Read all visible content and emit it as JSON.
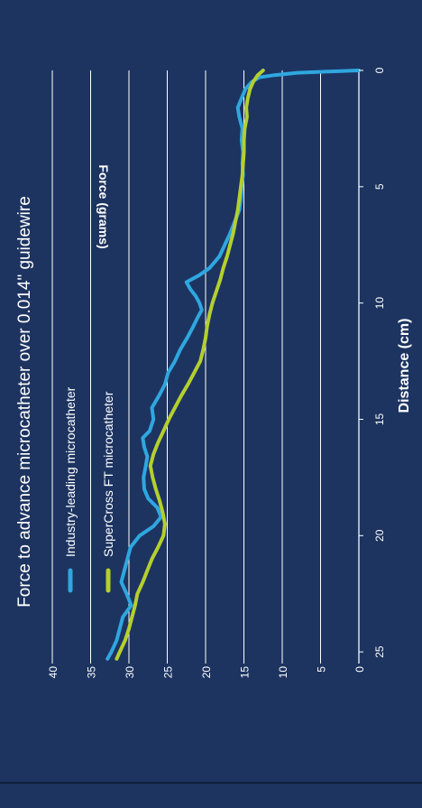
{
  "chart_data": {
    "type": "line",
    "orientation": "rotated-90-ccw",
    "title": "Force to advance microcatheter over 0.014\" guidewire",
    "xlabel": "Distance (cm)",
    "ylabel": "Force (grams)",
    "xlim": [
      0,
      25.5
    ],
    "ylim": [
      0,
      40
    ],
    "xticks": [
      0,
      5,
      10,
      15,
      20,
      25
    ],
    "yticks": [
      0,
      5,
      10,
      15,
      20,
      25,
      30,
      35,
      40
    ],
    "grid": "horizontal-lines",
    "legend_position": "top-left",
    "series": [
      {
        "name": "Industry-leading microcatheter",
        "color": "#2fa7df",
        "points": [
          [
            0,
            0
          ],
          [
            0.05,
            4
          ],
          [
            0.1,
            8
          ],
          [
            0.2,
            11
          ],
          [
            0.3,
            13
          ],
          [
            0.5,
            14
          ],
          [
            0.8,
            14.8
          ],
          [
            1.2,
            15.3
          ],
          [
            1.6,
            15.8
          ],
          [
            2.0,
            15.6
          ],
          [
            2.5,
            15.2
          ],
          [
            3.0,
            15.3
          ],
          [
            3.5,
            15.1
          ],
          [
            4.0,
            15.2
          ],
          [
            4.5,
            15.1
          ],
          [
            5.0,
            15.3
          ],
          [
            5.5,
            15.4
          ],
          [
            6.0,
            15.6
          ],
          [
            6.5,
            16.2
          ],
          [
            7.0,
            16.8
          ],
          [
            7.5,
            17.5
          ],
          [
            8.0,
            18.2
          ],
          [
            8.5,
            19.5
          ],
          [
            8.8,
            20.8
          ],
          [
            9.1,
            22.5
          ],
          [
            9.4,
            22.0
          ],
          [
            9.7,
            21.3
          ],
          [
            10.0,
            20.8
          ],
          [
            10.3,
            20.5
          ],
          [
            10.6,
            21.0
          ],
          [
            11.0,
            21.6
          ],
          [
            11.5,
            22.4
          ],
          [
            12.0,
            23.3
          ],
          [
            12.5,
            24.0
          ],
          [
            13.0,
            24.9
          ],
          [
            13.5,
            25.3
          ],
          [
            14.0,
            26.1
          ],
          [
            14.5,
            27.0
          ],
          [
            15.0,
            26.8
          ],
          [
            15.5,
            27.3
          ],
          [
            15.8,
            28.2
          ],
          [
            16.2,
            28.0
          ],
          [
            16.6,
            27.6
          ],
          [
            17.0,
            27.8
          ],
          [
            17.5,
            28.1
          ],
          [
            18.0,
            28.0
          ],
          [
            18.4,
            27.5
          ],
          [
            18.8,
            26.3
          ],
          [
            19.2,
            25.8
          ],
          [
            19.6,
            26.8
          ],
          [
            20.0,
            28.6
          ],
          [
            20.5,
            29.8
          ],
          [
            21.0,
            30.2
          ],
          [
            21.5,
            30.6
          ],
          [
            22.0,
            31.0
          ],
          [
            22.5,
            30.3
          ],
          [
            23.0,
            29.7
          ],
          [
            23.5,
            30.8
          ],
          [
            24.0,
            31.2
          ],
          [
            24.5,
            31.6
          ],
          [
            25.0,
            32.3
          ],
          [
            25.3,
            32.8
          ]
        ]
      },
      {
        "name": "SuperCross FT microcatheter",
        "color": "#b5cf2e",
        "points": [
          [
            0,
            12.5
          ],
          [
            0.2,
            13.2
          ],
          [
            0.5,
            13.8
          ],
          [
            0.8,
            14.2
          ],
          [
            1.2,
            14.5
          ],
          [
            1.6,
            14.7
          ],
          [
            2.0,
            14.6
          ],
          [
            2.5,
            14.9
          ],
          [
            3.0,
            15.0
          ],
          [
            3.5,
            15.0
          ],
          [
            4.0,
            15.1
          ],
          [
            4.5,
            15.2
          ],
          [
            5.0,
            15.4
          ],
          [
            5.5,
            15.6
          ],
          [
            6.0,
            15.8
          ],
          [
            6.5,
            16.1
          ],
          [
            7.0,
            16.4
          ],
          [
            7.5,
            16.8
          ],
          [
            8.0,
            17.2
          ],
          [
            8.5,
            17.7
          ],
          [
            9.0,
            18.1
          ],
          [
            9.5,
            18.6
          ],
          [
            10.0,
            19.1
          ],
          [
            10.5,
            19.5
          ],
          [
            11.0,
            19.8
          ],
          [
            11.5,
            20.0
          ],
          [
            12.0,
            20.3
          ],
          [
            12.5,
            20.7
          ],
          [
            13.0,
            21.5
          ],
          [
            13.5,
            22.3
          ],
          [
            14.0,
            23.2
          ],
          [
            14.5,
            24.0
          ],
          [
            15.0,
            24.8
          ],
          [
            15.5,
            25.5
          ],
          [
            16.0,
            26.2
          ],
          [
            16.5,
            26.8
          ],
          [
            17.0,
            27.2
          ],
          [
            17.5,
            26.9
          ],
          [
            18.0,
            26.5
          ],
          [
            18.5,
            26.0
          ],
          [
            19.0,
            25.6
          ],
          [
            19.5,
            25.3
          ],
          [
            20.0,
            25.5
          ],
          [
            20.5,
            26.2
          ],
          [
            21.0,
            27.0
          ],
          [
            21.5,
            27.6
          ],
          [
            22.0,
            28.2
          ],
          [
            22.5,
            28.9
          ],
          [
            23.0,
            29.2
          ],
          [
            23.5,
            29.6
          ],
          [
            24.0,
            30.0
          ],
          [
            24.5,
            30.5
          ],
          [
            25.0,
            31.2
          ],
          [
            25.3,
            31.6
          ]
        ]
      }
    ]
  },
  "colors": {
    "background": "#1d3461",
    "text": "#ffffff",
    "gridline": "#ffffff"
  }
}
